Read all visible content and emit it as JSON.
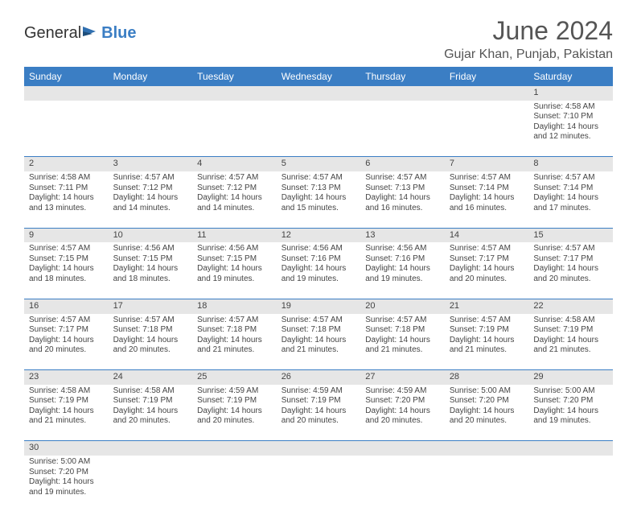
{
  "brand": {
    "part1": "General",
    "part2": "Blue"
  },
  "title": "June 2024",
  "location": "Gujar Khan, Punjab, Pakistan",
  "colors": {
    "header_bg": "#3b7ec4",
    "header_text": "#ffffff",
    "daynum_bg": "#e6e6e6",
    "cell_border": "#3b7ec4",
    "page_bg": "#ffffff",
    "text": "#444444",
    "title_color": "#555555"
  },
  "weekdays": [
    "Sunday",
    "Monday",
    "Tuesday",
    "Wednesday",
    "Thursday",
    "Friday",
    "Saturday"
  ],
  "weeks": [
    [
      null,
      null,
      null,
      null,
      null,
      null,
      {
        "n": "1",
        "sr": "Sunrise: 4:58 AM",
        "ss": "Sunset: 7:10 PM",
        "d1": "Daylight: 14 hours",
        "d2": "and 12 minutes."
      }
    ],
    [
      {
        "n": "2",
        "sr": "Sunrise: 4:58 AM",
        "ss": "Sunset: 7:11 PM",
        "d1": "Daylight: 14 hours",
        "d2": "and 13 minutes."
      },
      {
        "n": "3",
        "sr": "Sunrise: 4:57 AM",
        "ss": "Sunset: 7:12 PM",
        "d1": "Daylight: 14 hours",
        "d2": "and 14 minutes."
      },
      {
        "n": "4",
        "sr": "Sunrise: 4:57 AM",
        "ss": "Sunset: 7:12 PM",
        "d1": "Daylight: 14 hours",
        "d2": "and 14 minutes."
      },
      {
        "n": "5",
        "sr": "Sunrise: 4:57 AM",
        "ss": "Sunset: 7:13 PM",
        "d1": "Daylight: 14 hours",
        "d2": "and 15 minutes."
      },
      {
        "n": "6",
        "sr": "Sunrise: 4:57 AM",
        "ss": "Sunset: 7:13 PM",
        "d1": "Daylight: 14 hours",
        "d2": "and 16 minutes."
      },
      {
        "n": "7",
        "sr": "Sunrise: 4:57 AM",
        "ss": "Sunset: 7:14 PM",
        "d1": "Daylight: 14 hours",
        "d2": "and 16 minutes."
      },
      {
        "n": "8",
        "sr": "Sunrise: 4:57 AM",
        "ss": "Sunset: 7:14 PM",
        "d1": "Daylight: 14 hours",
        "d2": "and 17 minutes."
      }
    ],
    [
      {
        "n": "9",
        "sr": "Sunrise: 4:57 AM",
        "ss": "Sunset: 7:15 PM",
        "d1": "Daylight: 14 hours",
        "d2": "and 18 minutes."
      },
      {
        "n": "10",
        "sr": "Sunrise: 4:56 AM",
        "ss": "Sunset: 7:15 PM",
        "d1": "Daylight: 14 hours",
        "d2": "and 18 minutes."
      },
      {
        "n": "11",
        "sr": "Sunrise: 4:56 AM",
        "ss": "Sunset: 7:15 PM",
        "d1": "Daylight: 14 hours",
        "d2": "and 19 minutes."
      },
      {
        "n": "12",
        "sr": "Sunrise: 4:56 AM",
        "ss": "Sunset: 7:16 PM",
        "d1": "Daylight: 14 hours",
        "d2": "and 19 minutes."
      },
      {
        "n": "13",
        "sr": "Sunrise: 4:56 AM",
        "ss": "Sunset: 7:16 PM",
        "d1": "Daylight: 14 hours",
        "d2": "and 19 minutes."
      },
      {
        "n": "14",
        "sr": "Sunrise: 4:57 AM",
        "ss": "Sunset: 7:17 PM",
        "d1": "Daylight: 14 hours",
        "d2": "and 20 minutes."
      },
      {
        "n": "15",
        "sr": "Sunrise: 4:57 AM",
        "ss": "Sunset: 7:17 PM",
        "d1": "Daylight: 14 hours",
        "d2": "and 20 minutes."
      }
    ],
    [
      {
        "n": "16",
        "sr": "Sunrise: 4:57 AM",
        "ss": "Sunset: 7:17 PM",
        "d1": "Daylight: 14 hours",
        "d2": "and 20 minutes."
      },
      {
        "n": "17",
        "sr": "Sunrise: 4:57 AM",
        "ss": "Sunset: 7:18 PM",
        "d1": "Daylight: 14 hours",
        "d2": "and 20 minutes."
      },
      {
        "n": "18",
        "sr": "Sunrise: 4:57 AM",
        "ss": "Sunset: 7:18 PM",
        "d1": "Daylight: 14 hours",
        "d2": "and 21 minutes."
      },
      {
        "n": "19",
        "sr": "Sunrise: 4:57 AM",
        "ss": "Sunset: 7:18 PM",
        "d1": "Daylight: 14 hours",
        "d2": "and 21 minutes."
      },
      {
        "n": "20",
        "sr": "Sunrise: 4:57 AM",
        "ss": "Sunset: 7:18 PM",
        "d1": "Daylight: 14 hours",
        "d2": "and 21 minutes."
      },
      {
        "n": "21",
        "sr": "Sunrise: 4:57 AM",
        "ss": "Sunset: 7:19 PM",
        "d1": "Daylight: 14 hours",
        "d2": "and 21 minutes."
      },
      {
        "n": "22",
        "sr": "Sunrise: 4:58 AM",
        "ss": "Sunset: 7:19 PM",
        "d1": "Daylight: 14 hours",
        "d2": "and 21 minutes."
      }
    ],
    [
      {
        "n": "23",
        "sr": "Sunrise: 4:58 AM",
        "ss": "Sunset: 7:19 PM",
        "d1": "Daylight: 14 hours",
        "d2": "and 21 minutes."
      },
      {
        "n": "24",
        "sr": "Sunrise: 4:58 AM",
        "ss": "Sunset: 7:19 PM",
        "d1": "Daylight: 14 hours",
        "d2": "and 20 minutes."
      },
      {
        "n": "25",
        "sr": "Sunrise: 4:59 AM",
        "ss": "Sunset: 7:19 PM",
        "d1": "Daylight: 14 hours",
        "d2": "and 20 minutes."
      },
      {
        "n": "26",
        "sr": "Sunrise: 4:59 AM",
        "ss": "Sunset: 7:19 PM",
        "d1": "Daylight: 14 hours",
        "d2": "and 20 minutes."
      },
      {
        "n": "27",
        "sr": "Sunrise: 4:59 AM",
        "ss": "Sunset: 7:20 PM",
        "d1": "Daylight: 14 hours",
        "d2": "and 20 minutes."
      },
      {
        "n": "28",
        "sr": "Sunrise: 5:00 AM",
        "ss": "Sunset: 7:20 PM",
        "d1": "Daylight: 14 hours",
        "d2": "and 20 minutes."
      },
      {
        "n": "29",
        "sr": "Sunrise: 5:00 AM",
        "ss": "Sunset: 7:20 PM",
        "d1": "Daylight: 14 hours",
        "d2": "and 19 minutes."
      }
    ],
    [
      {
        "n": "30",
        "sr": "Sunrise: 5:00 AM",
        "ss": "Sunset: 7:20 PM",
        "d1": "Daylight: 14 hours",
        "d2": "and 19 minutes."
      },
      null,
      null,
      null,
      null,
      null,
      null
    ]
  ]
}
